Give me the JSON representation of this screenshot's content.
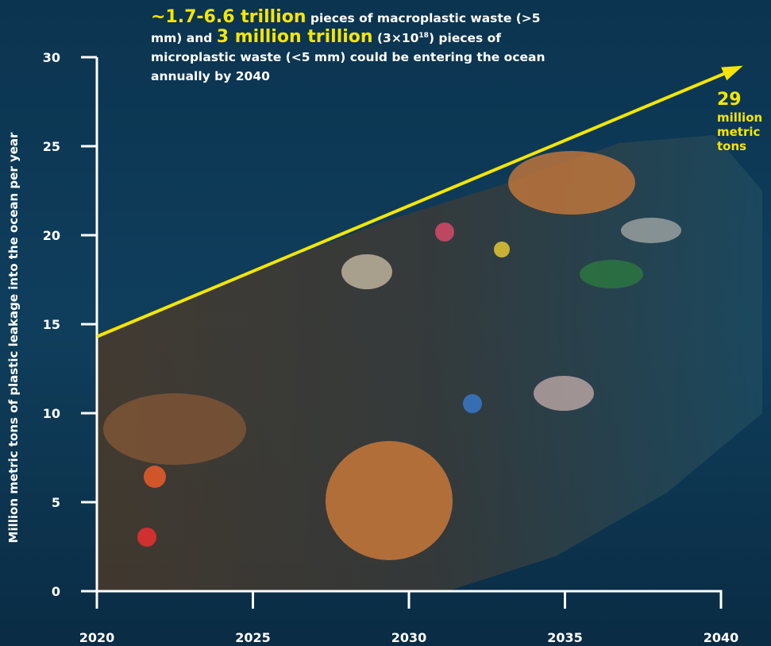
{
  "chart_data": {
    "type": "line",
    "title": "",
    "xlabel": "",
    "ylabel": "Million metric tons of plastic leakage into the ocean per year",
    "x_ticks": [
      "2020",
      "2025",
      "2030",
      "2035",
      "2040"
    ],
    "y_ticks": [
      "0",
      "5",
      "10",
      "15",
      "20",
      "25",
      "30"
    ],
    "xlim": [
      2020,
      2040
    ],
    "ylim": [
      0,
      30
    ],
    "grid": false,
    "series": [
      {
        "x": [
          2020,
          2040
        ],
        "y": [
          14.3,
          29
        ],
        "color": "#f5e600"
      }
    ],
    "end_label": {
      "value": "29",
      "unit_lines": [
        "million",
        "metric",
        "tons"
      ]
    },
    "annotation": {
      "lead1": "~1.7-6.6 trillion",
      "text1": " pieces of macroplastic waste (>5 mm) and ",
      "lead2": "3 million trillion",
      "text2a": " (3×10",
      "sup": "18",
      "text2b": ") pieces of microplastic waste (<5 mm) could be entering the ocean annually by 2040"
    }
  }
}
